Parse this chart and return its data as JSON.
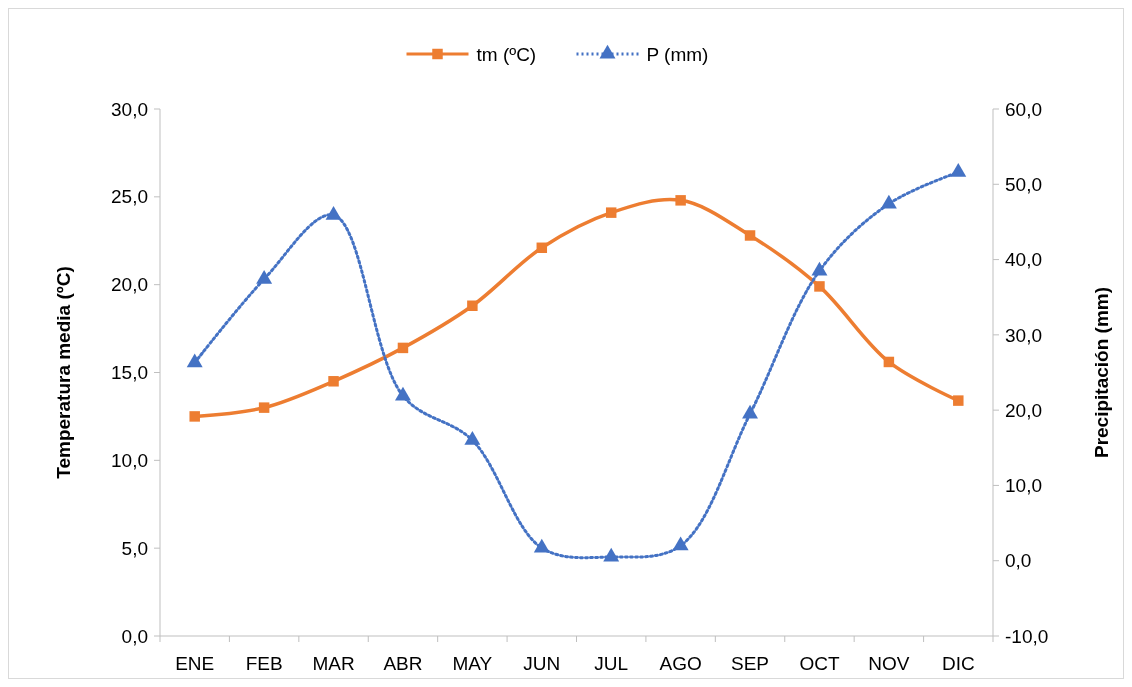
{
  "chart_data": {
    "type": "line",
    "categories": [
      "ENE",
      "FEB",
      "MAR",
      "ABR",
      "MAY",
      "JUN",
      "JUL",
      "AGO",
      "SEP",
      "OCT",
      "NOV",
      "DIC"
    ],
    "ylabel": "Temperatura media (ºC)",
    "y2label": "Precipitación (mm)",
    "ylim": [
      0,
      30
    ],
    "yticks": [
      {
        "value": 0,
        "label": "0,0"
      },
      {
        "value": 5,
        "label": "5,0"
      },
      {
        "value": 10,
        "label": "10,0"
      },
      {
        "value": 15,
        "label": "15,0"
      },
      {
        "value": 20,
        "label": "20,0"
      },
      {
        "value": 25,
        "label": "25,0"
      },
      {
        "value": 30,
        "label": "30,0"
      }
    ],
    "y2lim": [
      -10,
      60
    ],
    "y2ticks": [
      {
        "value": -10,
        "label": "-10,0"
      },
      {
        "value": 0,
        "label": "0,0"
      },
      {
        "value": 10,
        "label": "10,0"
      },
      {
        "value": 20,
        "label": "20,0"
      },
      {
        "value": 30,
        "label": "30,0"
      },
      {
        "value": 40,
        "label": "40,0"
      },
      {
        "value": 50,
        "label": "50,0"
      },
      {
        "value": 60,
        "label": "60,0"
      }
    ],
    "legend": "top",
    "grid": false,
    "series": [
      {
        "name": "tm (ºC)",
        "color": "#ed7d31",
        "marker": "square",
        "line_style": "solid",
        "values": [
          12.5,
          13.0,
          14.5,
          16.4,
          18.8,
          22.1,
          24.1,
          24.8,
          22.8,
          19.9,
          15.6,
          13.4
        ]
      },
      {
        "name": "P (mm)",
        "color": "#4472c4",
        "marker": "triangle",
        "line_style": "dotted",
        "axis": "y2",
        "values": [
          26.3,
          37.4,
          45.9,
          21.9,
          16.0,
          1.7,
          0.5,
          2.0,
          19.5,
          38.5,
          47.4,
          51.6
        ]
      }
    ]
  }
}
